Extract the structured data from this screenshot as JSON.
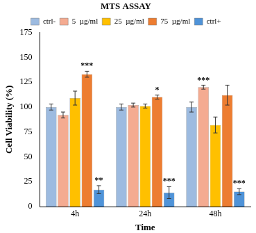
{
  "chart_data": {
    "type": "bar",
    "title": "MTS ASSAY",
    "x_label": "Time",
    "y_label": "Cell Viability (%)",
    "categories": [
      "4h",
      "24h",
      "48h"
    ],
    "series": [
      {
        "name": "ctrl-",
        "color": "#9dbbe0",
        "values": [
          100,
          100,
          100
        ],
        "errors": [
          3,
          3,
          5
        ]
      },
      {
        "name": "5  µg/ml",
        "color": "#f4ab91",
        "values": [
          92,
          102,
          120
        ],
        "errors": [
          3,
          2,
          2
        ]
      },
      {
        "name": "25  µg/ml",
        "color": "#ffc000",
        "values": [
          109,
          101,
          82
        ],
        "errors": [
          7,
          2,
          8
        ]
      },
      {
        "name": "75  µg/ml",
        "color": "#ed7d31",
        "values": [
          133,
          110,
          112
        ],
        "errors": [
          3,
          2,
          10
        ]
      },
      {
        "name": "ctrl+",
        "color": "#4f93d8",
        "values": [
          17,
          14,
          15
        ],
        "errors": [
          4,
          6,
          3
        ]
      }
    ],
    "annotations": [
      {
        "series": "75  µg/ml",
        "category": "4h",
        "text": "***"
      },
      {
        "series": "ctrl+",
        "category": "4h",
        "text": "**"
      },
      {
        "series": "75  µg/ml",
        "category": "24h",
        "text": "*"
      },
      {
        "series": "ctrl+",
        "category": "24h",
        "text": "***"
      },
      {
        "series": "5  µg/ml",
        "category": "48h",
        "text": "***"
      },
      {
        "series": "ctrl+",
        "category": "48h",
        "text": "***"
      }
    ],
    "ylim": [
      0,
      175
    ],
    "yticks": [
      0,
      25,
      50,
      75,
      100,
      125,
      150,
      175
    ],
    "grid": false,
    "legend": "top"
  }
}
